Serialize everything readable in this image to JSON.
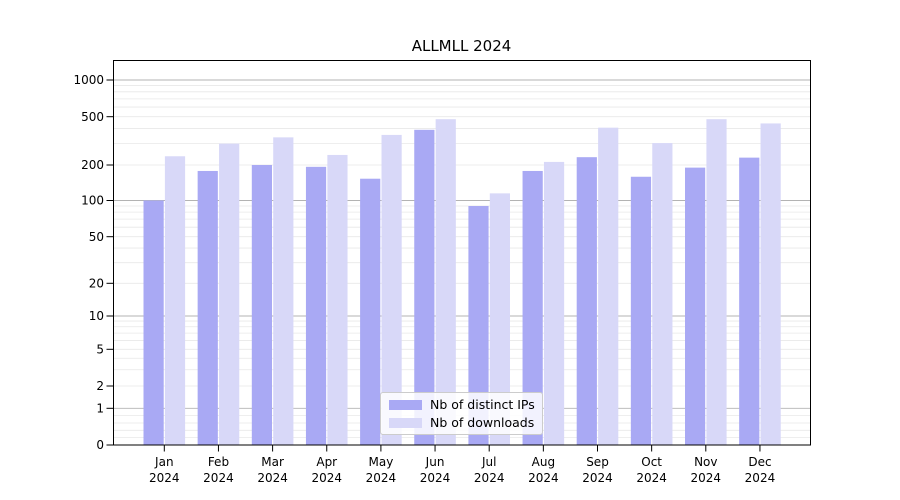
{
  "title": "ALLMLL 2024",
  "chart_data": {
    "type": "bar",
    "title": "ALLMLL 2024",
    "categories": [
      "Jan 2024",
      "Feb 2024",
      "Mar 2024",
      "Apr 2024",
      "May 2024",
      "Jun 2024",
      "Jul 2024",
      "Aug 2024",
      "Sep 2024",
      "Oct 2024",
      "Nov 2024",
      "Dec 2024"
    ],
    "series": [
      {
        "name": "Nb of distinct IPs",
        "color": "#a9a9f4",
        "values": [
          100,
          178,
          200,
          193,
          153,
          390,
          90,
          178,
          232,
          159,
          190,
          230
        ]
      },
      {
        "name": "Nb of downloads",
        "color": "#d8d8f8",
        "values": [
          236,
          300,
          338,
          242,
          354,
          477,
          115,
          212,
          406,
          303,
          477,
          440
        ]
      }
    ],
    "xlabel": "",
    "ylabel": "",
    "yscale": "symlog",
    "yticks": [
      0,
      1,
      2,
      5,
      10,
      20,
      50,
      100,
      200,
      500,
      1000
    ],
    "ylim": [
      0,
      1450
    ],
    "grid": true,
    "gridline_major_color": "#b3b3b3",
    "gridline_minor_color": "#e8e8e8",
    "legend_position": "lower center"
  }
}
